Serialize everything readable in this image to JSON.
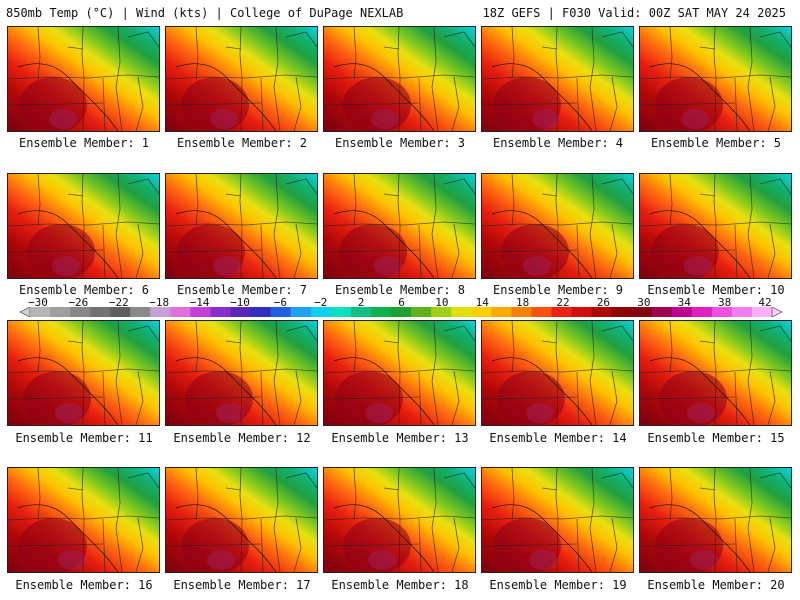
{
  "header": {
    "title": "850mb Temp (°C) | Wind (kts) | College of DuPage NEXLAB",
    "run_info": "18Z GEFS | F030 Valid: 00Z SAT MAY 24 2025"
  },
  "panels": [
    {
      "label": "Ensemble Member: 1"
    },
    {
      "label": "Ensemble Member: 2"
    },
    {
      "label": "Ensemble Member: 3"
    },
    {
      "label": "Ensemble Member: 4"
    },
    {
      "label": "Ensemble Member: 5"
    },
    {
      "label": "Ensemble Member: 6"
    },
    {
      "label": "Ensemble Member: 7"
    },
    {
      "label": "Ensemble Member: 8"
    },
    {
      "label": "Ensemble Member: 9"
    },
    {
      "label": "Ensemble Member: 10"
    },
    {
      "label": "Ensemble Member: 11"
    },
    {
      "label": "Ensemble Member: 12"
    },
    {
      "label": "Ensemble Member: 13"
    },
    {
      "label": "Ensemble Member: 14"
    },
    {
      "label": "Ensemble Member: 15"
    },
    {
      "label": "Ensemble Member: 16"
    },
    {
      "label": "Ensemble Member: 17"
    },
    {
      "label": "Ensemble Member: 18"
    },
    {
      "label": "Ensemble Member: 19"
    },
    {
      "label": "Ensemble Member: 20"
    }
  ],
  "colorbar": {
    "ticks": [
      "−30",
      "−26",
      "−22",
      "−18",
      "−14",
      "−10",
      "−6",
      "−2",
      "2",
      "6",
      "10",
      "14",
      "18",
      "22",
      "26",
      "30",
      "34",
      "38",
      "42"
    ],
    "colors": [
      "#b5b5b5",
      "#9e9e9e",
      "#888888",
      "#737373",
      "#5f5f5f",
      "#8b8b8b",
      "#c8a0d8",
      "#e070e0",
      "#c040d8",
      "#8a30c8",
      "#5a28b8",
      "#3030c0",
      "#2060e0",
      "#20a0f0",
      "#10d0f0",
      "#10e0c0",
      "#10c080",
      "#10b050",
      "#20a030",
      "#60b020",
      "#a0d010",
      "#e0e010",
      "#ffd000",
      "#ffaa00",
      "#ff8000",
      "#ff5010",
      "#f02010",
      "#d01010",
      "#b00808",
      "#900000",
      "#800010",
      "#a00050",
      "#c00090",
      "#e020c0",
      "#f050e0",
      "#f080f0",
      "#ffb0ff"
    ]
  }
}
